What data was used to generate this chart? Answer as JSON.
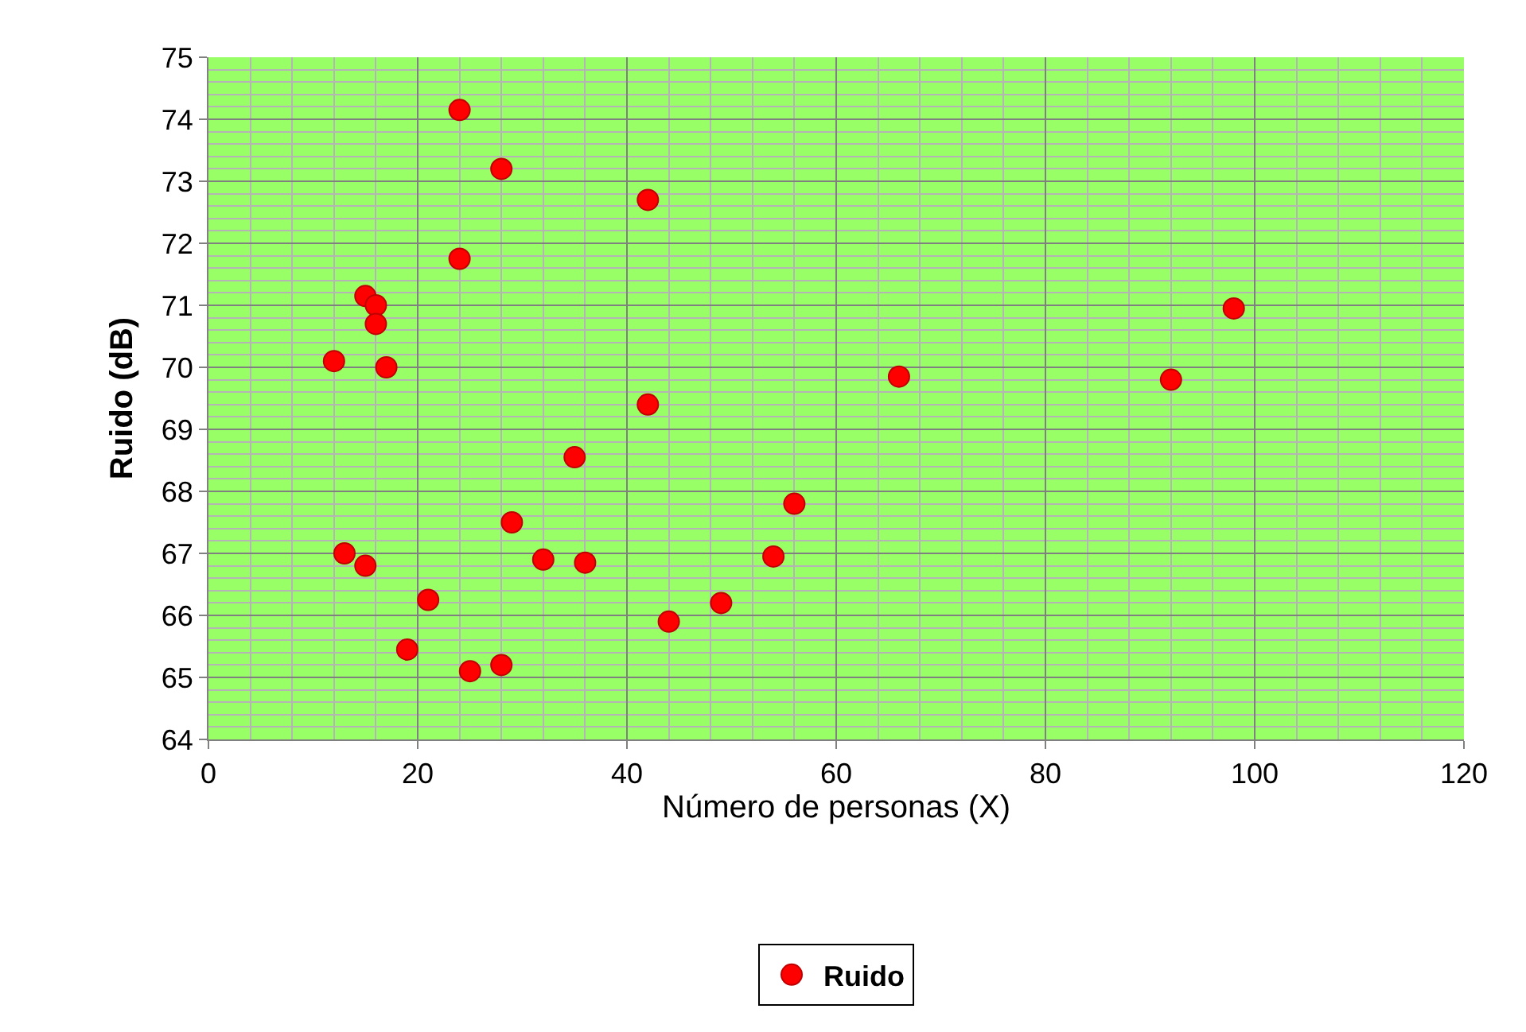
{
  "chart_data": {
    "type": "scatter",
    "xlabel": "Número de personas (X)",
    "ylabel": "Ruido (dB)",
    "xlim": [
      0,
      120
    ],
    "xticks": [
      0,
      20,
      40,
      60,
      80,
      100,
      120
    ],
    "ylim": [
      64,
      75
    ],
    "yticks": [
      64,
      65,
      66,
      67,
      68,
      69,
      70,
      71,
      72,
      73,
      74,
      75
    ],
    "grid": true,
    "legend": "bottom",
    "marker": "circle",
    "series": [
      {
        "name": "Ruido",
        "color": "#ff0000",
        "x": [
          12,
          13,
          15,
          15,
          16,
          16,
          17,
          19,
          21,
          24,
          24,
          25,
          28,
          28,
          29,
          32,
          35,
          36,
          42,
          42,
          44,
          49,
          54,
          56,
          66,
          92,
          98
        ],
        "values": [
          70.1,
          67.0,
          71.15,
          66.8,
          71.0,
          70.7,
          70.0,
          65.45,
          66.25,
          74.15,
          71.75,
          65.1,
          73.2,
          65.2,
          67.5,
          66.9,
          68.55,
          66.85,
          72.7,
          69.4,
          65.9,
          66.2,
          66.95,
          67.8,
          69.85,
          69.8,
          70.95
        ]
      }
    ]
  }
}
